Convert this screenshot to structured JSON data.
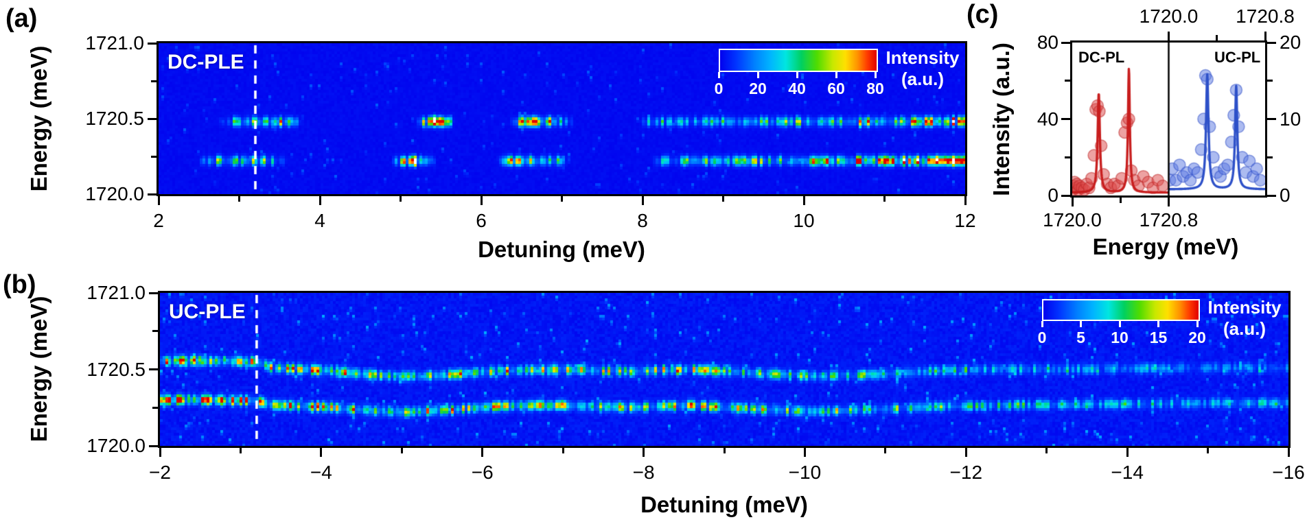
{
  "figure": {
    "background": "#ffffff"
  },
  "colormap": [
    [
      0,
      "#0101ee"
    ],
    [
      0.1,
      "#0033ff"
    ],
    [
      0.22,
      "#0080ff"
    ],
    [
      0.32,
      "#00b4ff"
    ],
    [
      0.42,
      "#00e6e0"
    ],
    [
      0.52,
      "#00d060"
    ],
    [
      0.62,
      "#50dc00"
    ],
    [
      0.72,
      "#c8e800"
    ],
    [
      0.8,
      "#ffe000"
    ],
    [
      0.88,
      "#ff9000"
    ],
    [
      0.94,
      "#ff3c00"
    ],
    [
      1,
      "#e00000"
    ]
  ],
  "chart_data": [
    {
      "id": "a",
      "type": "heatmap",
      "tag": "(a)",
      "title": "DC-PLE",
      "xlabel": "Detuning (meV)",
      "ylabel": "Energy (meV)",
      "xlim": [
        2,
        12
      ],
      "ylim": [
        1720.0,
        1721.0
      ],
      "xticks": [
        [
          2,
          "2"
        ],
        [
          4,
          "4"
        ],
        [
          6,
          "6"
        ],
        [
          8,
          "8"
        ],
        [
          10,
          "10"
        ],
        [
          12,
          "12"
        ]
      ],
      "xminors": [
        3,
        5,
        7,
        9,
        11
      ],
      "yticks": [
        [
          1721.0,
          "1721.0"
        ],
        [
          1720.5,
          "1720.5"
        ],
        [
          1720.0,
          "1720.0"
        ]
      ],
      "yminors": [
        1720.25,
        1720.75
      ],
      "dashed_line_x": 3.2,
      "line_sigma": 0.02,
      "colorbar": {
        "range": [
          0,
          80
        ],
        "ticks": [
          [
            0,
            "0"
          ],
          [
            20,
            "20"
          ],
          [
            40,
            "40"
          ],
          [
            60,
            "60"
          ],
          [
            80,
            "80"
          ]
        ],
        "label_line1": "Intensity",
        "label_line2": "(a.u.)"
      },
      "emission_lines": [
        {
          "energy": 1720.48,
          "profile": [
            [
              2,
              0
            ],
            [
              2.75,
              0
            ],
            [
              2.9,
              26
            ],
            [
              3.1,
              30
            ],
            [
              3.3,
              34
            ],
            [
              3.5,
              60
            ],
            [
              3.65,
              25
            ],
            [
              3.8,
              0
            ],
            [
              5.2,
              0
            ],
            [
              5.3,
              45
            ],
            [
              5.42,
              88
            ],
            [
              5.55,
              50
            ],
            [
              5.68,
              0
            ],
            [
              6.35,
              0
            ],
            [
              6.5,
              55
            ],
            [
              6.65,
              68
            ],
            [
              6.85,
              45
            ],
            [
              7.0,
              28
            ],
            [
              7.15,
              0
            ],
            [
              7.95,
              0
            ],
            [
              8.1,
              30
            ],
            [
              8.3,
              26
            ],
            [
              8.45,
              20
            ],
            [
              8.6,
              24
            ],
            [
              9,
              26
            ],
            [
              9.5,
              30
            ],
            [
              10,
              34
            ],
            [
              10.5,
              40
            ],
            [
              11,
              46
            ],
            [
              11.5,
              54
            ],
            [
              11.8,
              62
            ],
            [
              12,
              72
            ]
          ]
        },
        {
          "energy": 1720.22,
          "profile": [
            [
              2,
              0
            ],
            [
              2.5,
              0
            ],
            [
              2.65,
              30
            ],
            [
              2.9,
              38
            ],
            [
              3.1,
              42
            ],
            [
              3.3,
              40
            ],
            [
              3.45,
              18
            ],
            [
              3.6,
              0
            ],
            [
              4.9,
              0
            ],
            [
              5.02,
              40
            ],
            [
              5.15,
              92
            ],
            [
              5.3,
              38
            ],
            [
              5.45,
              0
            ],
            [
              6.2,
              0
            ],
            [
              6.35,
              50
            ],
            [
              6.55,
              66
            ],
            [
              6.8,
              50
            ],
            [
              6.95,
              30
            ],
            [
              7.1,
              0
            ],
            [
              8.1,
              0
            ],
            [
              8.3,
              28
            ],
            [
              8.6,
              30
            ],
            [
              9,
              34
            ],
            [
              9.5,
              40
            ],
            [
              10,
              46
            ],
            [
              10.5,
              54
            ],
            [
              11,
              62
            ],
            [
              11.4,
              70
            ],
            [
              11.7,
              80
            ],
            [
              12,
              95
            ]
          ]
        }
      ],
      "noise": {
        "base": 2,
        "seed": 11,
        "streak_prob": 0.45,
        "streak_base": 4,
        "streak_var": 7,
        "edge_boost": false
      }
    },
    {
      "id": "b",
      "type": "heatmap",
      "tag": "(b)",
      "title": "UC-PLE",
      "xlabel": "Detuning (meV)",
      "ylabel": "Energy (meV)",
      "xlim": [
        -2,
        -16
      ],
      "ylim": [
        1720.0,
        1721.0
      ],
      "xticks": [
        [
          -2,
          "−2"
        ],
        [
          -4,
          "−4"
        ],
        [
          -6,
          "−6"
        ],
        [
          -8,
          "−8"
        ],
        [
          -10,
          "−10"
        ],
        [
          -12,
          "−12"
        ],
        [
          -14,
          "−14"
        ],
        [
          -16,
          "−16"
        ]
      ],
      "xminors": [
        -3,
        -5,
        -7,
        -9,
        -11,
        -13,
        -15
      ],
      "yticks": [
        [
          1721.0,
          "1721.0"
        ],
        [
          1720.5,
          "1720.5"
        ],
        [
          1720.0,
          "1720.0"
        ]
      ],
      "yminors": [
        1720.25,
        1720.75
      ],
      "dashed_line_x": -3.2,
      "line_sigma": 0.02,
      "colorbar": {
        "range": [
          0,
          20
        ],
        "ticks": [
          [
            0,
            "0"
          ],
          [
            5,
            "5"
          ],
          [
            10,
            "10"
          ],
          [
            15,
            "15"
          ],
          [
            20,
            "20"
          ]
        ],
        "label_line1": "Intensity",
        "label_line2": "(a.u.)"
      },
      "emission_lines": [
        {
          "points": [
            [
              -2,
              1720.555,
              11
            ],
            [
              -2.6,
              1720.555,
              12
            ],
            [
              -3.2,
              1720.55,
              13
            ],
            [
              -3.4,
              1720.51,
              10
            ],
            [
              -4,
              1720.495,
              12
            ],
            [
              -4.5,
              1720.47,
              11
            ],
            [
              -5,
              1720.455,
              11
            ],
            [
              -5.6,
              1720.465,
              10
            ],
            [
              -6.2,
              1720.49,
              11
            ],
            [
              -7,
              1720.5,
              10
            ],
            [
              -7.8,
              1720.485,
              9
            ],
            [
              -8.6,
              1720.5,
              10
            ],
            [
              -9.4,
              1720.475,
              9
            ],
            [
              -10.2,
              1720.455,
              8
            ],
            [
              -11,
              1720.47,
              8
            ],
            [
              -11.8,
              1720.495,
              7
            ],
            [
              -12.6,
              1720.5,
              6
            ],
            [
              -13.4,
              1720.5,
              5
            ],
            [
              -14.2,
              1720.505,
              5
            ],
            [
              -15,
              1720.51,
              4
            ],
            [
              -16,
              1720.51,
              4
            ]
          ]
        },
        {
          "points": [
            [
              -2,
              1720.3,
              16
            ],
            [
              -2.6,
              1720.3,
              15
            ],
            [
              -3.2,
              1720.295,
              15
            ],
            [
              -3.4,
              1720.265,
              12
            ],
            [
              -4,
              1720.255,
              13
            ],
            [
              -4.5,
              1720.235,
              12
            ],
            [
              -5,
              1720.22,
              12
            ],
            [
              -5.6,
              1720.235,
              11
            ],
            [
              -6.2,
              1720.26,
              12
            ],
            [
              -7,
              1720.265,
              11
            ],
            [
              -7.8,
              1720.25,
              10
            ],
            [
              -8.6,
              1720.265,
              11
            ],
            [
              -9.4,
              1720.24,
              10
            ],
            [
              -10.2,
              1720.225,
              9
            ],
            [
              -11,
              1720.24,
              8
            ],
            [
              -11.8,
              1720.26,
              8
            ],
            [
              -12.6,
              1720.265,
              7
            ],
            [
              -13.4,
              1720.27,
              6
            ],
            [
              -14.2,
              1720.275,
              6
            ],
            [
              -15,
              1720.28,
              5
            ],
            [
              -16,
              1720.28,
              5
            ]
          ]
        }
      ],
      "noise": {
        "base": 1.1,
        "seed": 23,
        "streak_prob": 0.65,
        "streak_base": 1.6,
        "streak_var": 3.2,
        "edge_boost": true
      }
    },
    {
      "id": "c",
      "type": "line+scatter",
      "tag": "(c)",
      "xlabel": "Energy (meV)",
      "ylabel": "Intensity (a.u.)",
      "left_axis": {
        "range": [
          0,
          80
        ],
        "ticks": [
          [
            0,
            "0"
          ],
          [
            40,
            "40"
          ],
          [
            80,
            "80"
          ]
        ],
        "minors": [
          20,
          60
        ]
      },
      "right_axis": {
        "range": [
          0,
          20
        ],
        "ticks": [
          [
            0,
            "0"
          ],
          [
            10,
            "10"
          ],
          [
            20,
            "20"
          ]
        ],
        "minors": [
          5,
          15
        ]
      },
      "bottom_axis": {
        "side": "left-subpanel",
        "ticks": [
          [
            1720.0,
            "1720.0"
          ],
          [
            1720.8,
            "1720.8"
          ]
        ],
        "minors": [
          1720.4
        ]
      },
      "top_axis": {
        "side": "right-subpanel",
        "ticks": [
          [
            1720.0,
            "1720.0"
          ],
          [
            1720.8,
            "1720.8"
          ]
        ],
        "minors": [
          1720.4
        ]
      },
      "subpanels": [
        {
          "label": "DC-PL",
          "color": "#c81e1e",
          "scatter_color": "rgba(220,70,70,0.5)",
          "scatter_edge": "rgba(190,40,40,0.55)",
          "xlim": [
            1720.0,
            1720.8
          ],
          "ylim": [
            0,
            80
          ],
          "baseline": 1.5,
          "peaks": [
            {
              "center": 1720.22,
              "amplitude": 52,
              "width": 0.011
            },
            {
              "center": 1720.47,
              "amplitude": 65,
              "width": 0.009
            }
          ],
          "scatter": [
            [
              1720.005,
              3
            ],
            [
              1720.015,
              5
            ],
            [
              1720.02,
              7
            ],
            [
              1720.03,
              4
            ],
            [
              1720.04,
              6
            ],
            [
              1720.05,
              3
            ],
            [
              1720.06,
              5
            ],
            [
              1720.08,
              4
            ],
            [
              1720.1,
              3
            ],
            [
              1720.12,
              6
            ],
            [
              1720.14,
              4
            ],
            [
              1720.16,
              9
            ],
            [
              1720.18,
              21
            ],
            [
              1720.195,
              45
            ],
            [
              1720.21,
              47
            ],
            [
              1720.225,
              44
            ],
            [
              1720.24,
              26
            ],
            [
              1720.26,
              11
            ],
            [
              1720.29,
              6
            ],
            [
              1720.32,
              4
            ],
            [
              1720.35,
              6
            ],
            [
              1720.38,
              5
            ],
            [
              1720.41,
              9
            ],
            [
              1720.435,
              33
            ],
            [
              1720.455,
              38
            ],
            [
              1720.47,
              40
            ],
            [
              1720.49,
              13
            ],
            [
              1720.515,
              8
            ],
            [
              1720.55,
              5
            ],
            [
              1720.59,
              10
            ],
            [
              1720.63,
              7
            ],
            [
              1720.67,
              4
            ],
            [
              1720.71,
              8
            ],
            [
              1720.75,
              5
            ]
          ]
        },
        {
          "label": "UC-PL",
          "color": "#2d50c8",
          "scatter_color": "rgba(90,120,225,0.5)",
          "scatter_edge": "rgba(50,80,200,0.55)",
          "xlim": [
            1720.0,
            1720.8
          ],
          "ylim": [
            0,
            20
          ],
          "baseline": 0.8,
          "peaks": [
            {
              "center": 1720.32,
              "amplitude": 15,
              "width": 0.012
            },
            {
              "center": 1720.56,
              "amplitude": 13.5,
              "width": 0.011
            }
          ],
          "scatter": [
            [
              1720.01,
              2
            ],
            [
              1720.03,
              3.5
            ],
            [
              1720.06,
              2
            ],
            [
              1720.09,
              4
            ],
            [
              1720.12,
              2.5
            ],
            [
              1720.15,
              3
            ],
            [
              1720.18,
              2
            ],
            [
              1720.21,
              3.5
            ],
            [
              1720.24,
              3
            ],
            [
              1720.27,
              6
            ],
            [
              1720.29,
              10
            ],
            [
              1720.305,
              15.7
            ],
            [
              1720.32,
              15.2
            ],
            [
              1720.34,
              9
            ],
            [
              1720.37,
              5
            ],
            [
              1720.4,
              3
            ],
            [
              1720.43,
              2.5
            ],
            [
              1720.46,
              3.5
            ],
            [
              1720.49,
              4
            ],
            [
              1720.52,
              7
            ],
            [
              1720.54,
              10.5
            ],
            [
              1720.56,
              13.8
            ],
            [
              1720.58,
              9
            ],
            [
              1720.61,
              5
            ],
            [
              1720.64,
              3
            ],
            [
              1720.67,
              4.5
            ],
            [
              1720.7,
              2.5
            ],
            [
              1720.73,
              3.5
            ],
            [
              1720.76,
              2
            ]
          ]
        }
      ]
    }
  ]
}
